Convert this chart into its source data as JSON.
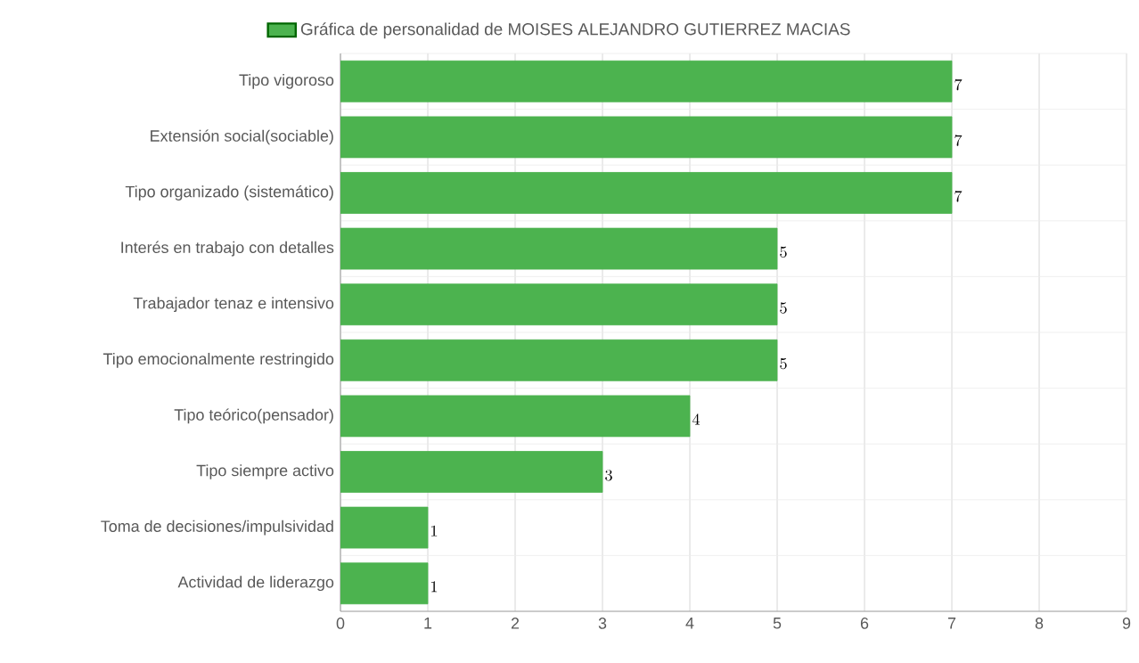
{
  "chart_data": {
    "type": "bar",
    "orientation": "horizontal",
    "categories": [
      "Tipo vigoroso",
      "Extensión social(sociable)",
      "Tipo organizado (sistemático)",
      "Interés en trabajo con detalles",
      "Trabajador tenaz e intensivo",
      "Tipo emocionalmente restringido",
      "Tipo teórico(pensador)",
      "Tipo siempre activo",
      "Toma de decisiones/impulsividad",
      "Actividad de liderazgo"
    ],
    "series": [
      {
        "name": "Gráfica de personalidad de MOISES ALEJANDRO GUTIERREZ MACIAS",
        "color": "#4cb34f",
        "values": [
          7,
          7,
          7,
          5,
          5,
          5,
          4,
          3,
          1,
          1
        ]
      }
    ],
    "xlim": [
      0,
      9
    ],
    "xticks": [
      0,
      1,
      2,
      3,
      4,
      5,
      6,
      7,
      8,
      9
    ],
    "grid": true,
    "legend": "top",
    "data_labels": true
  }
}
